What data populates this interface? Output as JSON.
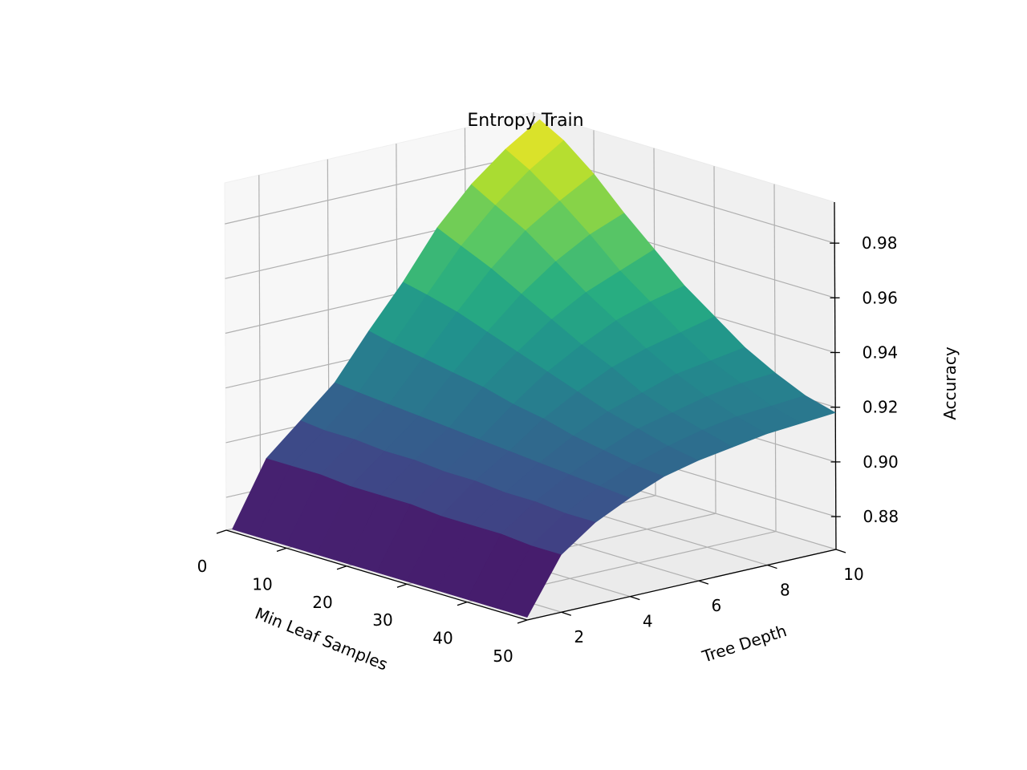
{
  "chart_data": {
    "type": "surface3d",
    "title": "Entropy Train",
    "xlabel": "Min Leaf Samples",
    "ylabel": "Tree Depth",
    "zlabel": "Accuracy",
    "x_ticks": [
      "0",
      "10",
      "20",
      "30",
      "40",
      "50"
    ],
    "y_ticks": [
      "2",
      "4",
      "6",
      "8",
      "10"
    ],
    "z_ticks": [
      "0.88",
      "0.90",
      "0.92",
      "0.94",
      "0.96",
      "0.98"
    ],
    "xlim": [
      0,
      50
    ],
    "ylim": [
      1,
      10
    ],
    "zlim": [
      0.868,
      0.995
    ],
    "colormap": "viridis",
    "min_leaf_samples": [
      1,
      5,
      10,
      15,
      20,
      25,
      30,
      35,
      40,
      45,
      50
    ],
    "tree_depth": [
      1,
      2,
      3,
      4,
      5,
      6,
      7,
      8,
      9,
      10
    ],
    "accuracy": [
      [
        0.869,
        0.892,
        0.903,
        0.914,
        0.93,
        0.945,
        0.962,
        0.975,
        0.985,
        0.993
      ],
      [
        0.869,
        0.892,
        0.902,
        0.913,
        0.928,
        0.943,
        0.958,
        0.97,
        0.98,
        0.988
      ],
      [
        0.869,
        0.892,
        0.902,
        0.912,
        0.926,
        0.94,
        0.953,
        0.964,
        0.972,
        0.979
      ],
      [
        0.869,
        0.891,
        0.901,
        0.911,
        0.924,
        0.936,
        0.947,
        0.956,
        0.963,
        0.968
      ],
      [
        0.869,
        0.891,
        0.901,
        0.91,
        0.922,
        0.932,
        0.941,
        0.948,
        0.953,
        0.958
      ],
      [
        0.869,
        0.891,
        0.9,
        0.909,
        0.919,
        0.928,
        0.935,
        0.941,
        0.945,
        0.948
      ],
      [
        0.869,
        0.89,
        0.9,
        0.908,
        0.917,
        0.924,
        0.93,
        0.934,
        0.937,
        0.94
      ],
      [
        0.869,
        0.89,
        0.899,
        0.907,
        0.914,
        0.92,
        0.924,
        0.928,
        0.93,
        0.932
      ],
      [
        0.869,
        0.89,
        0.899,
        0.906,
        0.912,
        0.917,
        0.92,
        0.923,
        0.925,
        0.926
      ],
      [
        0.869,
        0.889,
        0.898,
        0.905,
        0.91,
        0.914,
        0.917,
        0.919,
        0.92,
        0.921
      ],
      [
        0.869,
        0.889,
        0.898,
        0.904,
        0.909,
        0.912,
        0.914,
        0.916,
        0.917,
        0.918
      ]
    ]
  }
}
